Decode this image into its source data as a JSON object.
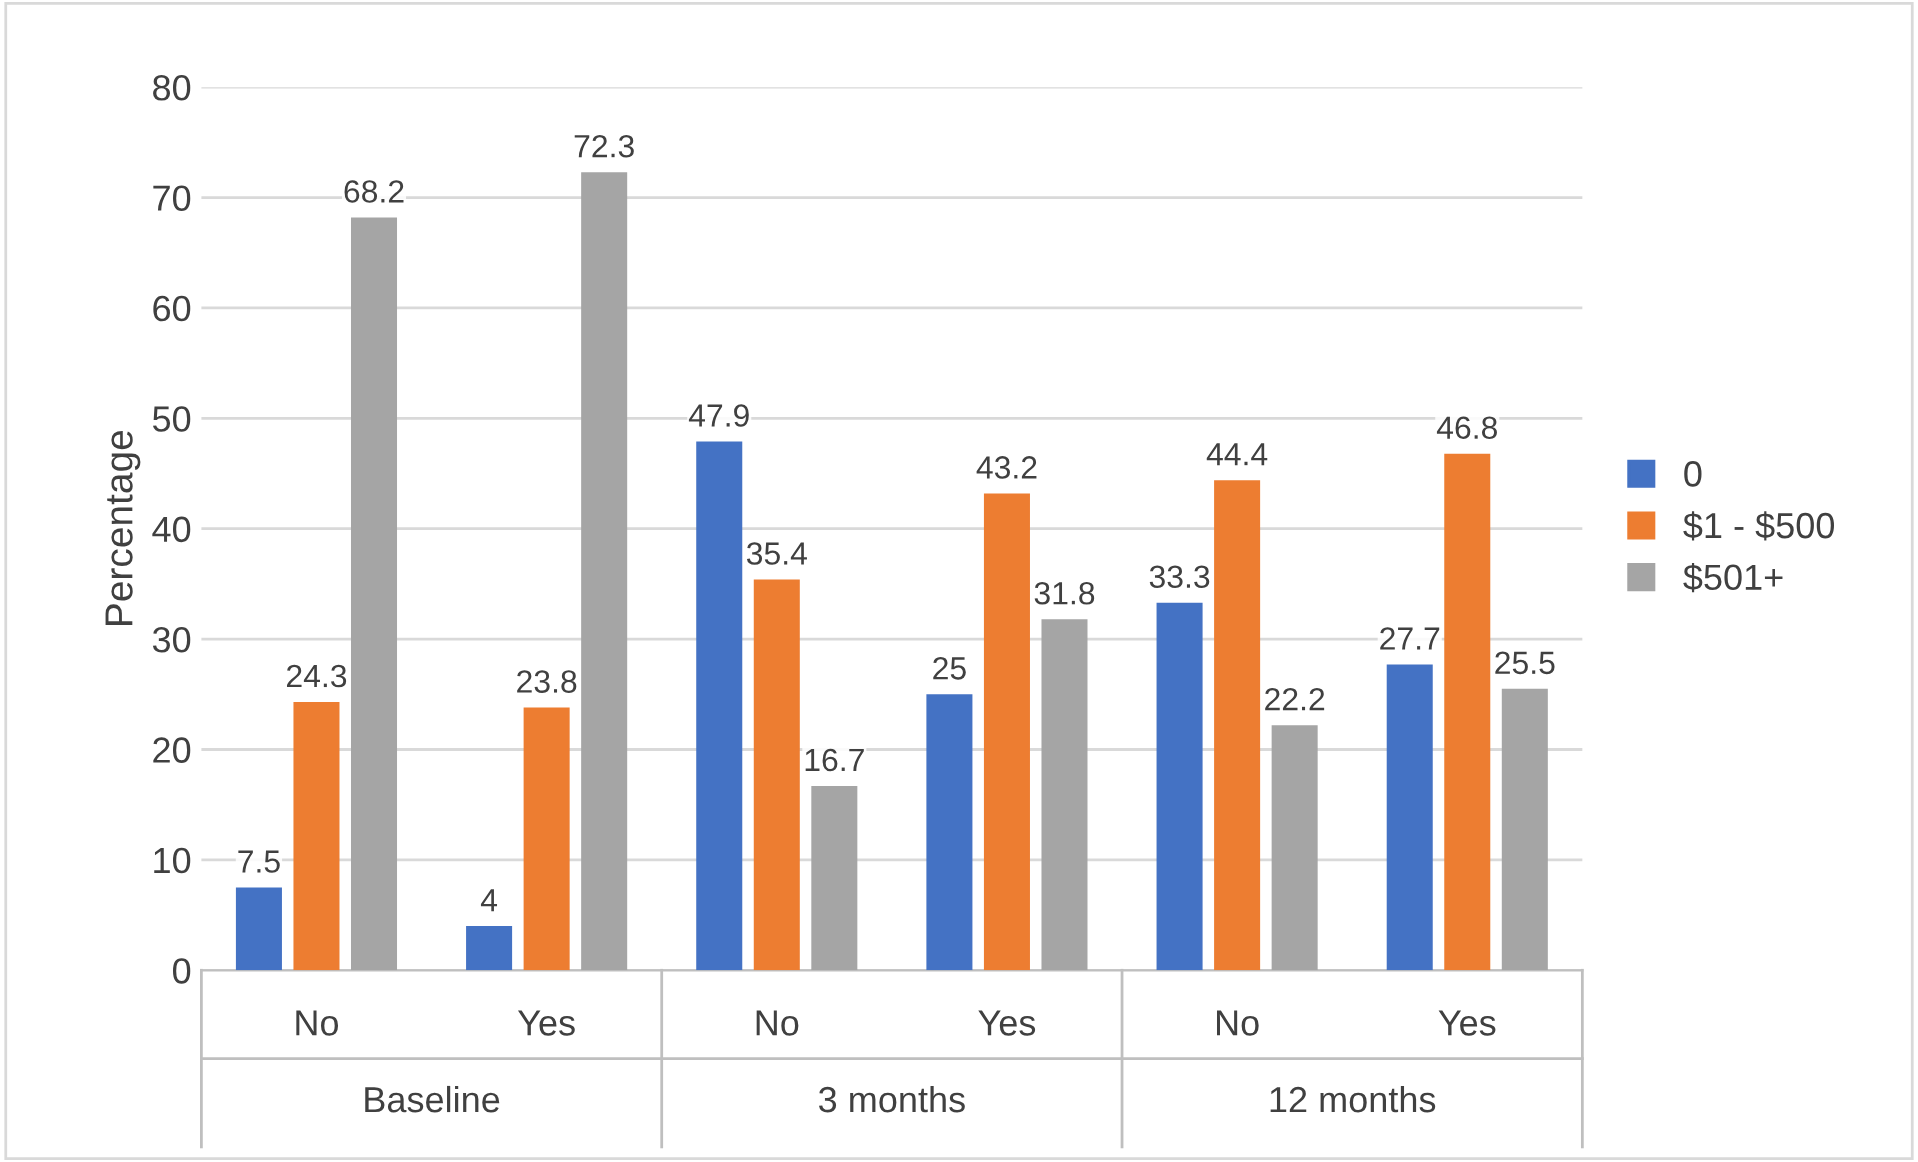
{
  "chart_data": {
    "type": "bar",
    "ylabel": "Percentage",
    "categories": [
      "No",
      "Yes",
      "No",
      "Yes",
      "No",
      "Yes"
    ],
    "annotations": [
      "Baseline",
      "3 months",
      "12 months"
    ],
    "series": [
      {
        "name": "0",
        "color": "#4472c4",
        "values": [
          7.5,
          4,
          47.9,
          25,
          33.3,
          27.7
        ]
      },
      {
        "name": "$1 - $500",
        "color": "#ed7d31",
        "values": [
          24.3,
          23.8,
          35.4,
          43.2,
          44.4,
          46.8
        ]
      },
      {
        "name": "$501+",
        "color": "#a5a5a5",
        "values": [
          68.2,
          72.3,
          16.7,
          31.8,
          22.2,
          25.5
        ]
      }
    ],
    "ylim": [
      0,
      80
    ],
    "yticks": [
      0,
      10,
      20,
      30,
      40,
      50,
      60,
      70,
      80
    ],
    "grid": "y",
    "legend": "right",
    "data_labels": true
  }
}
